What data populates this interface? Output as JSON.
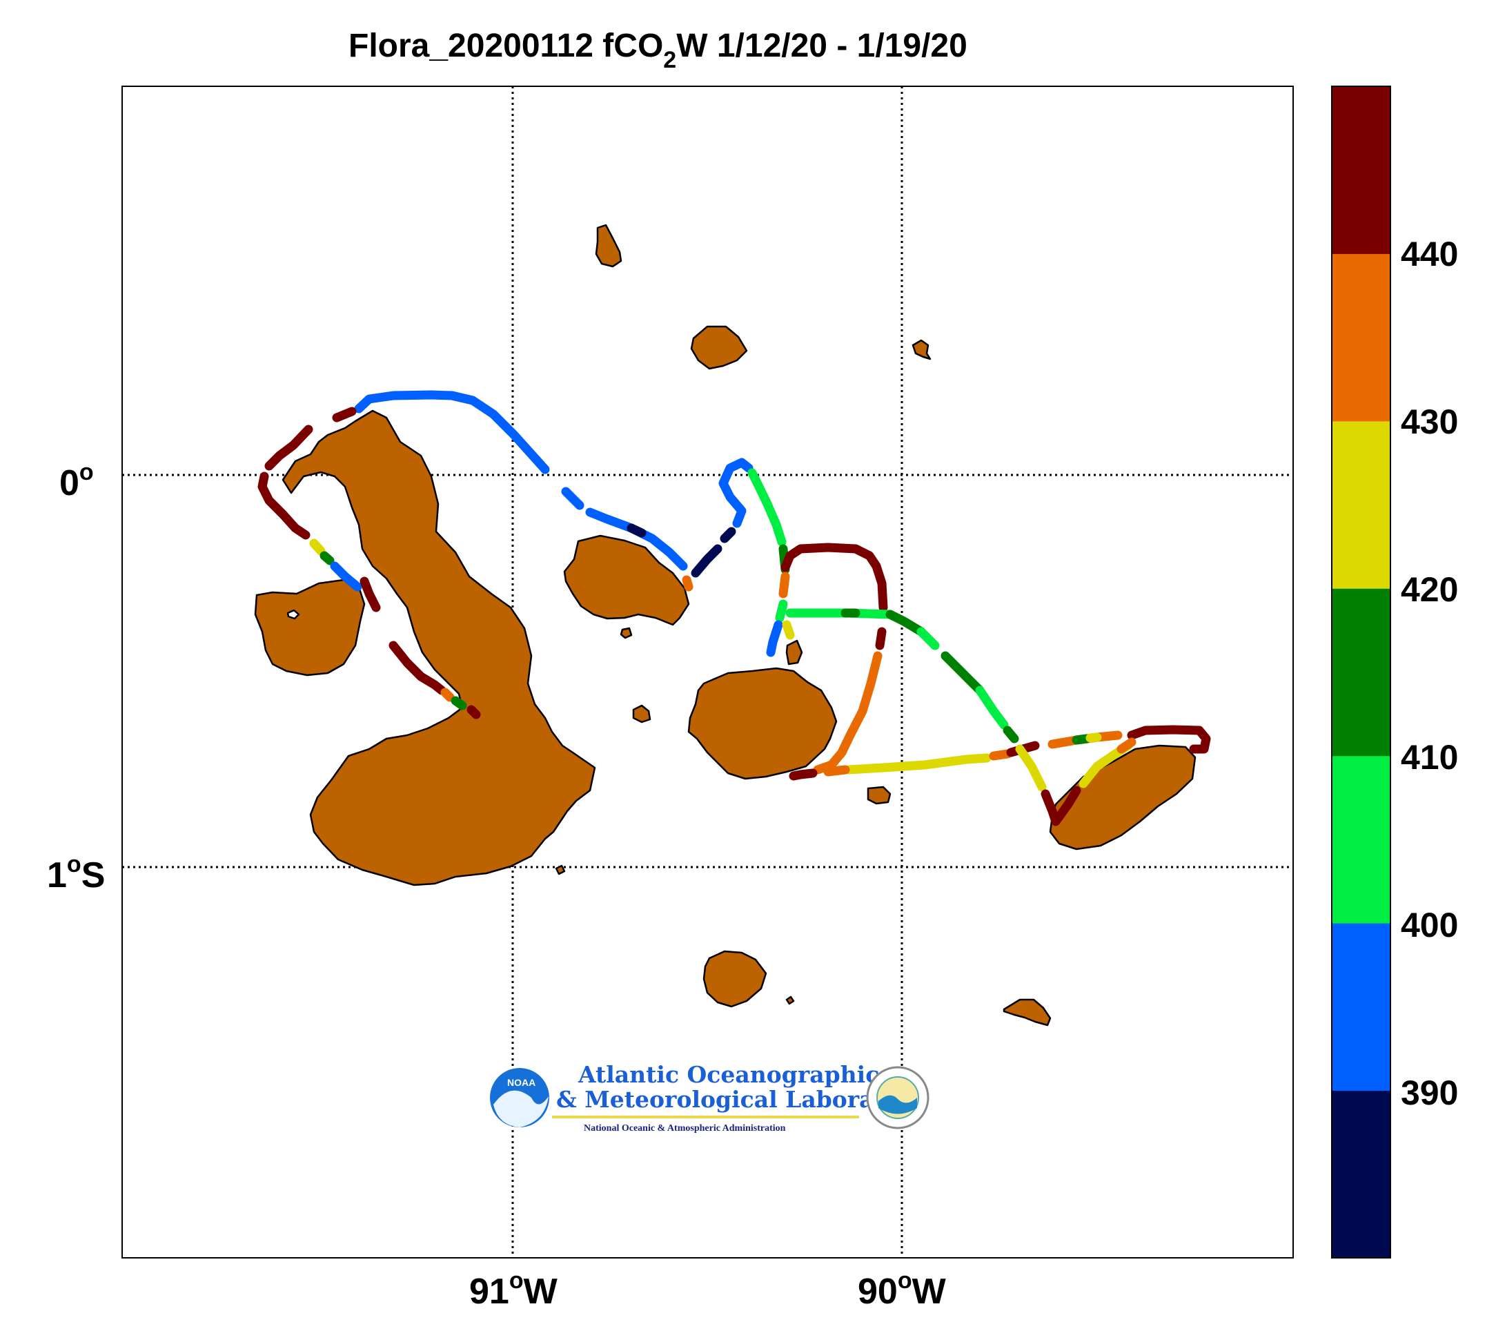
{
  "title": {
    "prefix": "Flora_20200112 fCO",
    "subscript": "2",
    "suffix": "W 1/12/20 - 1/19/20"
  },
  "axes": {
    "x_ticks": [
      "91",
      "90"
    ],
    "x_unit_suffix": "W",
    "y_ticks": [
      "0",
      "1"
    ],
    "y_unit_suffix_south": "S",
    "degree_symbol": "o",
    "grid": "dotted"
  },
  "colorbar": {
    "ticks": [
      "390",
      "400",
      "410",
      "420",
      "430",
      "440"
    ],
    "colors": [
      "#000a50",
      "#0060ff",
      "#00ee44",
      "#008000",
      "#dcd800",
      "#e86a00",
      "#7a0000"
    ]
  },
  "logo": {
    "line1": "Atlantic Oceanographic",
    "line2": "& Meteorological Laboratory",
    "line3": "National Oceanic & Atmospheric Administration",
    "badge": "NOAA",
    "text_color": "#1a5fd6"
  },
  "land_color": "#bd6200"
}
